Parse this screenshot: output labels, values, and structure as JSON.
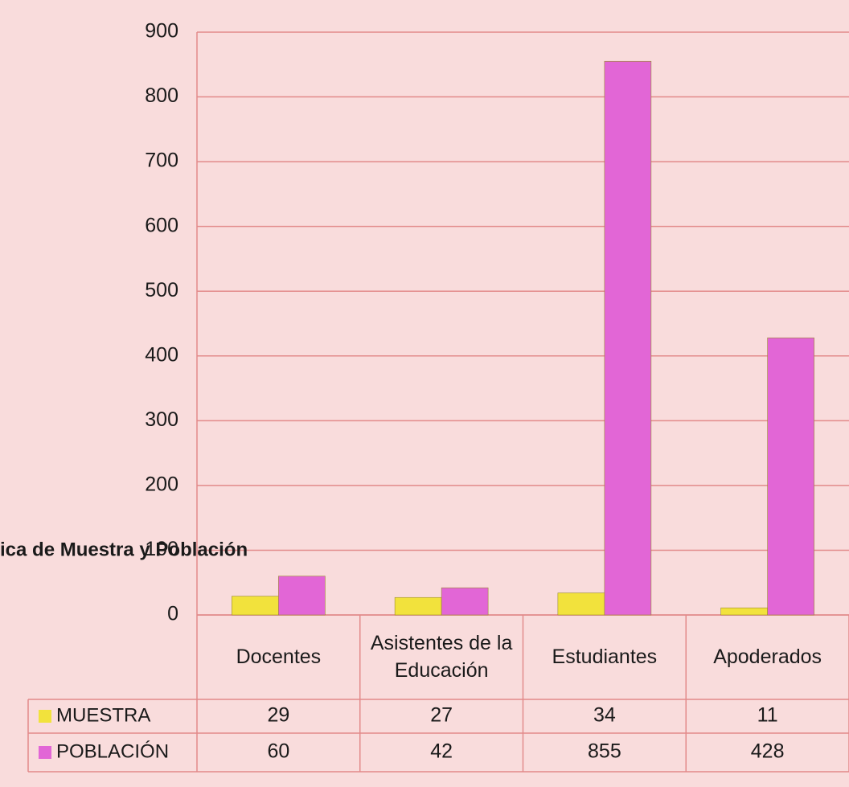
{
  "chart_data": {
    "type": "bar",
    "title": "ica de Muestra y Población",
    "categories": [
      "Docentes",
      "Asistentes de la Educación",
      "Estudiantes",
      "Apoderados"
    ],
    "series": [
      {
        "name": "MUESTRA",
        "color": "#f2e23c",
        "values": [
          29,
          27,
          34,
          11
        ]
      },
      {
        "name": "POBLACIÓN",
        "color": "#e266d6",
        "values": [
          60,
          42,
          855,
          428
        ]
      }
    ],
    "ylim": [
      0,
      900
    ],
    "yticks": [
      0,
      100,
      200,
      300,
      400,
      500,
      600,
      700,
      800,
      900
    ],
    "grid": true
  }
}
